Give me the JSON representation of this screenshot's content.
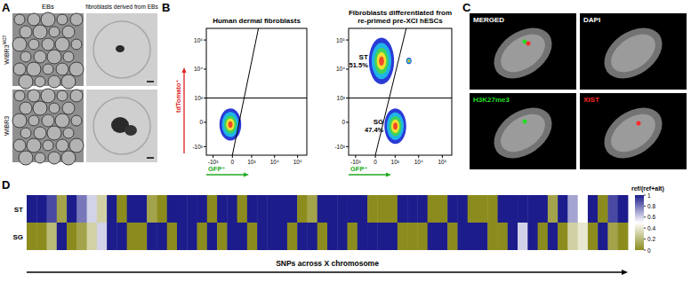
{
  "panel_labels": [
    "A",
    "B",
    "C",
    "D"
  ],
  "panel_a": {
    "columns": [
      "EBs",
      "fibroblasts derived from EBs"
    ],
    "rows": [
      {
        "text": "WIBR3",
        "superscript": "MGT"
      },
      {
        "text": "WIBR3"
      }
    ]
  },
  "panel_c": {
    "channels": [
      {
        "label": "MERGED",
        "color": "#ffffff"
      },
      {
        "label": "DAPI",
        "color": "#ffffff"
      },
      {
        "label": "H3K27me3",
        "color": "#22dd22"
      },
      {
        "label": "XIST",
        "color": "#ff2a2a"
      }
    ]
  },
  "chart_data": [
    {
      "type": "density",
      "title_lines": [
        "Human dermal fibroblasts"
      ],
      "x_label": "GFP⁺",
      "y_label": "tdTomato⁺",
      "xlim": [
        -2000,
        250000
      ],
      "ylim": [
        -2000,
        250000
      ],
      "xticks": [
        {
          "value": -1000,
          "label": "-10³"
        },
        0,
        {
          "value": 1000,
          "label": "10³"
        },
        {
          "value": 10000,
          "label": "10⁴"
        },
        {
          "value": 100000,
          "label": "10⁵"
        }
      ],
      "yticks": [
        {
          "value": -1000,
          "label": "-10³"
        },
        0,
        {
          "value": 1000,
          "label": "10³"
        },
        {
          "value": 10000,
          "label": "10⁴"
        },
        {
          "value": 100000,
          "label": "10⁵"
        }
      ],
      "gate": {
        "x_bottom": 0,
        "x_top": 2000,
        "y": 1000
      },
      "populations": [
        {
          "x_range": [
            -500,
            300
          ],
          "y_range": [
            -600,
            400
          ]
        }
      ]
    },
    {
      "type": "density",
      "title_lines": [
        "Fibroblasts differentiated from",
        "re-primed pre-XCI hESCs"
      ],
      "x_label": "GFP⁺",
      "xlim": [
        -2000,
        250000
      ],
      "ylim": [
        -2000,
        250000
      ],
      "xticks": [
        {
          "value": -1000,
          "label": "-10³"
        },
        0,
        {
          "value": 1000,
          "label": "10³"
        },
        {
          "value": 10000,
          "label": "10⁴"
        },
        {
          "value": 100000,
          "label": "10⁵"
        }
      ],
      "yticks": [
        {
          "value": -1000,
          "label": "-10³"
        },
        0,
        {
          "value": 1000,
          "label": "10³"
        },
        {
          "value": 10000,
          "label": "10⁴"
        },
        {
          "value": 100000,
          "label": "10⁵"
        }
      ],
      "gate": {
        "x_bottom": 0,
        "x_top": 3000,
        "y": 1000
      },
      "populations": [
        {
          "name": "ST",
          "value": 51.5,
          "value_label": "51.5%",
          "x_range": [
            -200,
            900
          ],
          "y_range": [
            3000,
            120000
          ]
        },
        {
          "x_range": [
            3000,
            5000
          ],
          "y_range": [
            15000,
            25000
          ]
        },
        {
          "name": "SG",
          "value": 47.4,
          "value_label": "47.4%",
          "x_range": [
            300,
            3000
          ],
          "y_range": [
            -800,
            400
          ]
        }
      ]
    },
    {
      "type": "heatmap",
      "rows": [
        "ST",
        "SG"
      ],
      "x_label": "SNPs across X chromosome",
      "cells": [
        [
          1,
          1,
          0.9,
          0.1,
          1,
          0.8,
          0.6,
          0.3,
          1,
          0,
          1,
          1,
          0.1,
          0,
          1,
          1,
          1,
          1,
          0,
          1,
          1,
          0,
          1,
          1,
          1,
          1,
          1,
          0,
          0.1,
          1,
          1,
          1,
          1,
          1,
          0,
          0,
          0,
          1,
          1,
          1,
          0,
          0,
          1,
          1,
          0,
          0,
          0,
          1,
          1,
          1,
          1,
          1,
          0.1,
          1,
          0.7,
          0.5,
          1,
          0,
          0.9,
          1
        ],
        [
          0,
          0,
          0.2,
          1,
          0,
          0.1,
          0.3,
          0.6,
          1,
          1,
          0,
          0,
          1,
          1,
          0,
          1,
          1,
          0,
          1,
          0,
          1,
          1,
          0,
          1,
          1,
          1,
          0,
          1,
          1,
          0,
          1,
          1,
          0,
          1,
          1,
          1,
          1,
          0,
          0,
          0,
          1,
          1,
          0,
          1,
          1,
          1,
          0,
          0,
          1,
          0.6,
          1,
          0,
          1,
          0,
          0.3,
          0.4,
          0,
          1,
          0.1,
          0
        ]
      ],
      "color_label": "ref/(ref+alt)",
      "color_range": [
        0,
        1
      ],
      "color_ticks": [
        1,
        0.8,
        0.6,
        0.4,
        0.2,
        0
      ]
    }
  ]
}
